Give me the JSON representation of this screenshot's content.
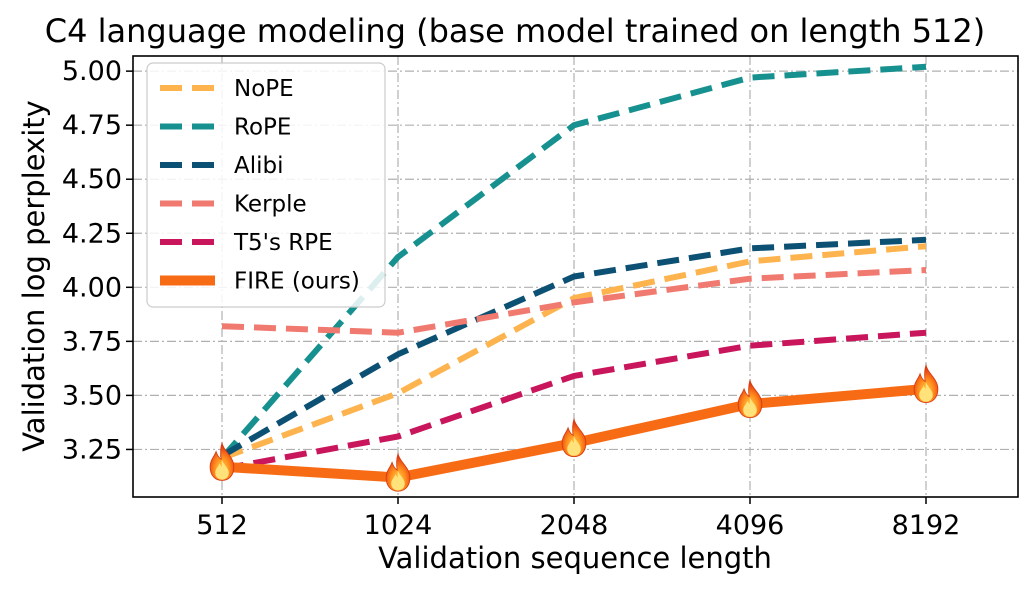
{
  "chart_data": {
    "type": "line",
    "title": "C4 language modeling (base model trained on length 512)",
    "xlabel": "Validation sequence length",
    "ylabel": "Validation log perplexity",
    "categories": [
      "512",
      "1024",
      "2048",
      "4096",
      "8192"
    ],
    "yticks": [
      "3.25",
      "3.50",
      "3.75",
      "4.00",
      "4.25",
      "4.50",
      "4.75",
      "5.00"
    ],
    "ylim": [
      3.03,
      5.07
    ],
    "grid": true,
    "legend_position": "top-left",
    "marker_icon": "fire-icon",
    "series": [
      {
        "name": "NoPE",
        "color": "#fdb44e",
        "style": "dashed",
        "values": [
          3.21,
          3.51,
          3.95,
          4.12,
          4.19
        ]
      },
      {
        "name": "RoPE",
        "color": "#17918f",
        "style": "dashed",
        "values": [
          3.21,
          4.14,
          4.75,
          4.97,
          5.02
        ]
      },
      {
        "name": "Alibi",
        "color": "#0c5173",
        "style": "dashed",
        "values": [
          3.22,
          3.69,
          4.05,
          4.18,
          4.22
        ]
      },
      {
        "name": "Kerple",
        "color": "#f07a70",
        "style": "dashed",
        "values": [
          3.82,
          3.79,
          3.93,
          4.04,
          4.08
        ]
      },
      {
        "name": "T5's RPE",
        "color": "#c8155b",
        "style": "dashed",
        "values": [
          3.16,
          3.31,
          3.59,
          3.73,
          3.79
        ]
      },
      {
        "name": "FIRE (ours)",
        "color": "#f76b15",
        "style": "solid",
        "values": [
          3.17,
          3.12,
          3.28,
          3.46,
          3.53
        ]
      }
    ]
  }
}
